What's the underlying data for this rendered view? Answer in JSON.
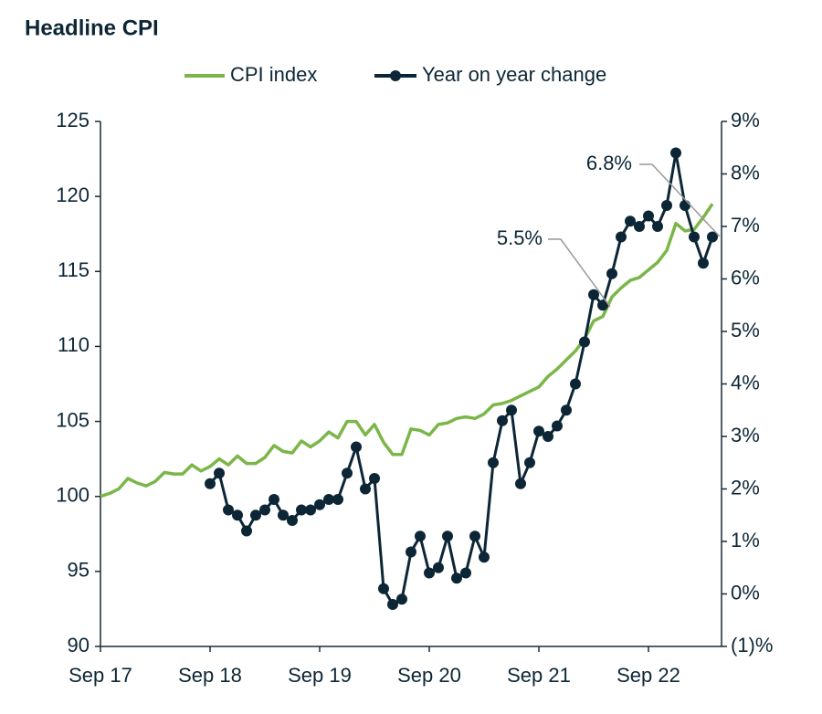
{
  "chart_data": {
    "type": "line",
    "title": "Headline CPI",
    "categories": [
      "Sep 17",
      null,
      null,
      null,
      null,
      null,
      null,
      null,
      null,
      null,
      null,
      null,
      "Sep 18",
      null,
      null,
      null,
      null,
      null,
      null,
      null,
      null,
      null,
      null,
      null,
      "Sep 19",
      null,
      null,
      null,
      null,
      null,
      null,
      null,
      null,
      null,
      null,
      null,
      "Sep 20",
      null,
      null,
      null,
      null,
      null,
      null,
      null,
      null,
      null,
      null,
      null,
      "Sep 21",
      null,
      null,
      null,
      null,
      null,
      null,
      null,
      null,
      null,
      null,
      null,
      "Sep 22",
      null,
      null,
      null,
      null,
      null,
      null,
      null
    ],
    "series": [
      {
        "name": "CPI index",
        "color": "#7ab648",
        "axis": "y",
        "values": [
          100.0,
          100.2,
          100.5,
          101.2,
          100.9,
          100.7,
          101.0,
          101.6,
          101.5,
          101.5,
          102.1,
          101.7,
          102.0,
          102.5,
          102.1,
          102.7,
          102.2,
          102.2,
          102.6,
          103.4,
          103.0,
          102.9,
          103.7,
          103.3,
          103.7,
          104.3,
          103.9,
          105.0,
          105.0,
          104.1,
          104.8,
          103.6,
          102.8,
          102.8,
          104.5,
          104.4,
          104.1,
          104.8,
          104.9,
          105.2,
          105.3,
          105.2,
          105.5,
          106.1,
          106.2,
          106.4,
          106.7,
          107.0,
          107.3,
          108.0,
          108.5,
          109.1,
          109.7,
          110.5,
          111.7,
          112.0,
          113.3,
          113.9,
          114.4,
          114.6,
          115.1,
          115.6,
          116.4,
          118.2,
          117.7,
          117.8,
          118.6,
          119.5
        ]
      },
      {
        "name": "Year on year change",
        "color": "#0d2636",
        "axis": "y2",
        "values": [
          null,
          null,
          null,
          null,
          null,
          null,
          null,
          null,
          null,
          null,
          null,
          null,
          2.1,
          2.3,
          1.6,
          1.5,
          1.2,
          1.5,
          1.6,
          1.8,
          1.5,
          1.4,
          1.6,
          1.6,
          1.7,
          1.8,
          1.8,
          2.3,
          2.8,
          2.0,
          2.2,
          0.1,
          -0.2,
          -0.1,
          0.8,
          1.1,
          0.4,
          0.5,
          1.1,
          0.3,
          0.4,
          1.1,
          0.7,
          2.5,
          3.3,
          3.5,
          2.1,
          2.5,
          3.1,
          3.0,
          3.2,
          3.5,
          4.0,
          4.8,
          5.7,
          5.5,
          6.1,
          6.8,
          7.1,
          7.0,
          7.2,
          7.0,
          7.4,
          8.4,
          7.4,
          6.8,
          6.3,
          6.8
        ]
      }
    ],
    "annotations": [
      "5.5%",
      "6.8%"
    ],
    "ylim": [
      90,
      125
    ],
    "yticks": [
      90,
      95,
      100,
      105,
      110,
      115,
      120,
      125
    ],
    "y2lim": [
      -1,
      9
    ],
    "y2ticks": [
      {
        "value": -1,
        "label": "(1)%"
      },
      {
        "value": 0,
        "label": "0%"
      },
      {
        "value": 1,
        "label": "1%"
      },
      {
        "value": 2,
        "label": "2%"
      },
      {
        "value": 3,
        "label": "3%"
      },
      {
        "value": 4,
        "label": "4%"
      },
      {
        "value": 5,
        "label": "5%"
      },
      {
        "value": 6,
        "label": "6%"
      },
      {
        "value": 7,
        "label": "7%"
      },
      {
        "value": 8,
        "label": "8%"
      },
      {
        "value": 9,
        "label": "9%"
      }
    ],
    "legend": "top"
  }
}
